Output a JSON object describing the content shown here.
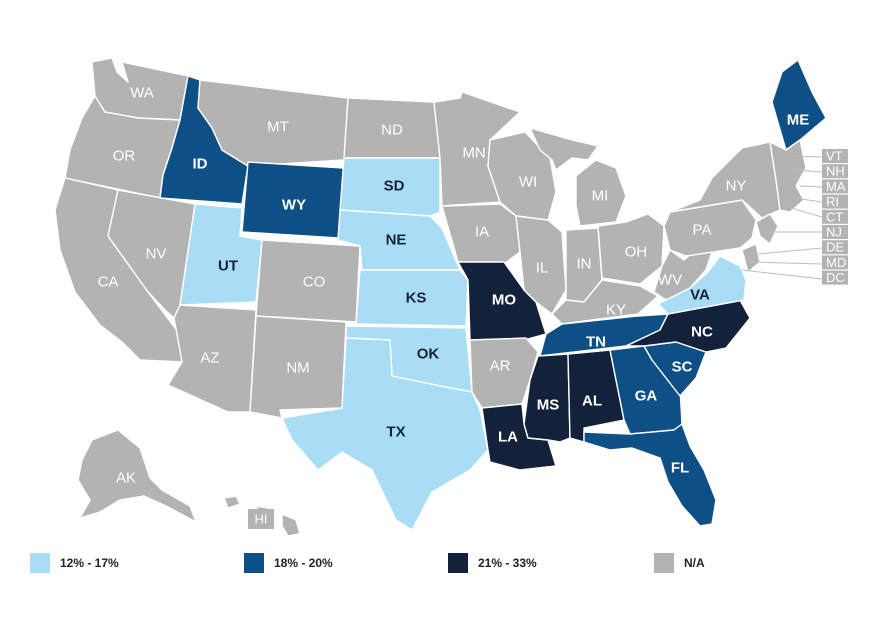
{
  "colors": {
    "na": "#b3b3b3",
    "low": "#a8ddf5",
    "mid": "#0e4f86",
    "high": "#14213a"
  },
  "legend": [
    {
      "label": "12% - 17%",
      "color": "#a8ddf5"
    },
    {
      "label": "18% - 20%",
      "color": "#0e4f86"
    },
    {
      "label": "21% - 33%",
      "color": "#14213a"
    },
    {
      "label": "N/A",
      "color": "#b3b3b3"
    }
  ],
  "states": {
    "WA": "na",
    "OR": "na",
    "CA": "na",
    "NV": "na",
    "ID": "mid",
    "MT": "na",
    "WY": "mid",
    "UT": "low",
    "AZ": "na",
    "CO": "na",
    "NM": "na",
    "ND": "na",
    "SD": "low",
    "NE": "low",
    "KS": "low",
    "OK": "low",
    "TX": "low",
    "MN": "na",
    "IA": "na",
    "MO": "high",
    "AR": "na",
    "LA": "high",
    "WI": "na",
    "IL": "na",
    "MI": "na",
    "IN": "na",
    "OH": "na",
    "KY": "na",
    "TN": "mid",
    "MS": "high",
    "AL": "high",
    "GA": "mid",
    "FL": "mid",
    "SC": "mid",
    "NC": "high",
    "VA": "low",
    "WV": "na",
    "PA": "na",
    "NY": "na",
    "ME": "mid",
    "AK": "na",
    "HI": "na"
  },
  "small_states": [
    "VT",
    "NH",
    "MA",
    "RI",
    "CT",
    "NJ",
    "DE",
    "MD",
    "DC"
  ]
}
